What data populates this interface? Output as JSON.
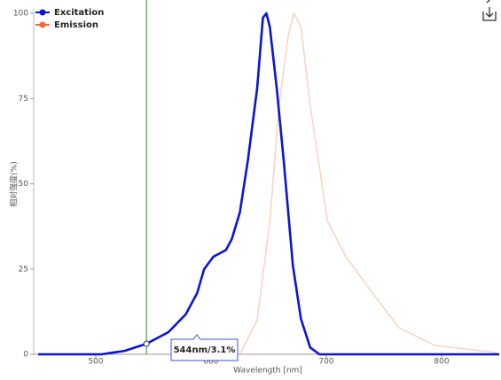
{
  "chart_data": {
    "type": "line",
    "x_label": "Wavelength [nm]",
    "y_label": "相对强度(%)",
    "xlim": [
      450,
      850
    ],
    "xticks": [
      500,
      600,
      700,
      800
    ],
    "ylim": [
      0,
      100
    ],
    "yticks": [
      0,
      25,
      50,
      75,
      100
    ],
    "legend": "top-left",
    "series": [
      {
        "name": "Excitation",
        "color": "#0a14d8",
        "opacity": 1,
        "x": [
          450,
          505,
          525,
          544,
          563,
          578,
          588,
          594,
          602,
          613,
          618,
          625,
          632,
          640,
          645,
          648,
          651,
          657,
          663,
          671,
          678,
          686,
          694,
          850
        ],
        "values": [
          0,
          0,
          1,
          3.1,
          6.5,
          11.7,
          18,
          25,
          28.6,
          30.6,
          33.8,
          41.6,
          57,
          78,
          98.7,
          100,
          96,
          78,
          57,
          26,
          10.4,
          2,
          0,
          0
        ]
      },
      {
        "name": "Emission",
        "color": "#f06a3a",
        "opacity": 0.3,
        "x": [
          625,
          640,
          651,
          659,
          667,
          672,
          678,
          686,
          701,
          717,
          740,
          763,
          794,
          848
        ],
        "values": [
          0,
          10,
          39,
          73,
          93.5,
          100,
          96,
          73,
          39,
          28.6,
          18,
          7.8,
          2.6,
          0.5
        ]
      }
    ],
    "cursor": {
      "x": 544,
      "y": 3.1,
      "label": "544nm/3.1%",
      "color": "#2e8b2e"
    }
  }
}
